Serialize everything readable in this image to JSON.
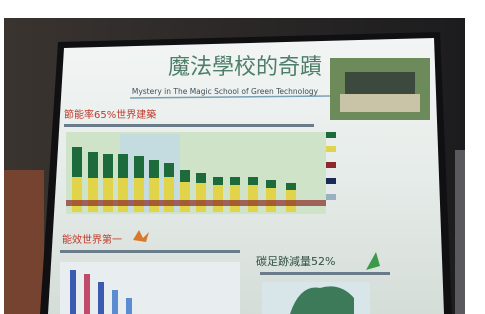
{
  "poster": {
    "title": "魔法學校的奇蹟",
    "subtitle": "Mystery in The Magic School of Green Technology",
    "sections": [
      {
        "heading": "節能率65%世界建築"
      },
      {
        "heading": "能效世界第一"
      },
      {
        "heading": "碳足跡減量52%"
      }
    ]
  }
}
